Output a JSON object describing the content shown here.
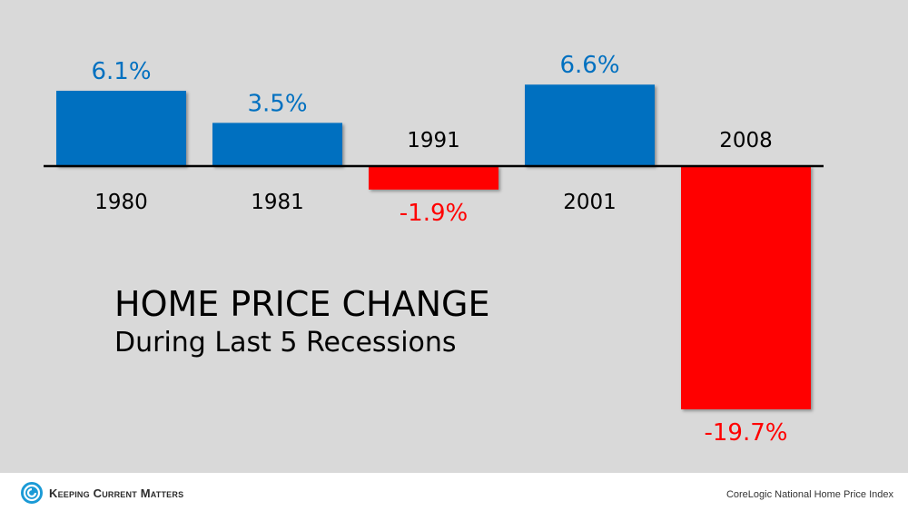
{
  "colors": {
    "positive": "#0070c0",
    "negative": "#ff0000",
    "panel_background": "#d9d9d9",
    "axis": "#000000",
    "brand": "#1a9ad6"
  },
  "chart_data": {
    "type": "bar",
    "title": "HOME PRICE CHANGE",
    "subtitle": "During Last 5 Recessions",
    "categories": [
      "1980",
      "1981",
      "1991",
      "2001",
      "2008"
    ],
    "values": [
      6.1,
      3.5,
      -1.9,
      6.6,
      -19.7
    ],
    "data_labels": [
      "6.1%",
      "3.5%",
      "-1.9%",
      "6.6%",
      "-19.7%"
    ],
    "unit": "%",
    "ylim": [
      -19.7,
      6.6
    ],
    "grid": false,
    "legend": "none"
  },
  "footer": {
    "brand": "Keeping Current Matters",
    "source": "CoreLogic National Home Price Index"
  }
}
